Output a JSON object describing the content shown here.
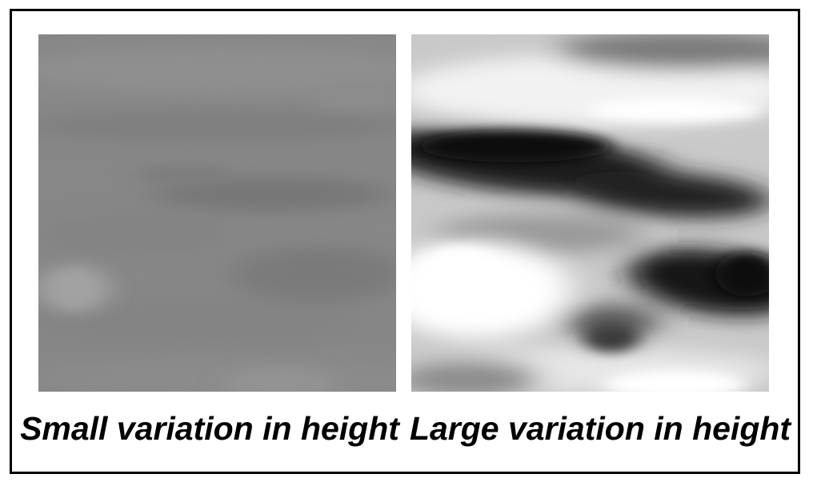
{
  "figure": {
    "panels": [
      {
        "name": "small-variation",
        "caption": "Small variation in height",
        "base_gray": "#888888"
      },
      {
        "name": "large-variation",
        "caption": "Large variation in height",
        "base_gray": "#cfcfcf"
      }
    ]
  }
}
